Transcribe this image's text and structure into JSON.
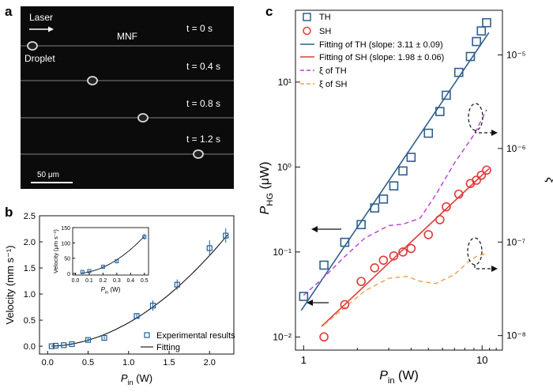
{
  "panels": {
    "a": {
      "letter": "a",
      "laser": "Laser",
      "fiber": "MNF",
      "droplet": "Droplet",
      "times": [
        "t = 0 s",
        "t = 0.4 s",
        "t = 0.8 s",
        "t = 1.2 s"
      ],
      "scale_bar": "50 μm"
    },
    "b": {
      "letter": "b"
    },
    "c": {
      "letter": "c"
    }
  },
  "chart_data": [
    {
      "panel": "b",
      "type": "scatter",
      "xlabel_main": "P",
      "xlabel_sub": "in",
      "xlabel_unit": " (W)",
      "ylabel": "Velocity (mm s⁻¹)",
      "xlim": [
        -0.1,
        2.3
      ],
      "ylim": [
        -0.15,
        2.5
      ],
      "xticks": [
        "0.0",
        "0.5",
        "1.0",
        "1.5",
        "2.0"
      ],
      "yticks": [
        "0.0",
        "0.5",
        "1.0",
        "1.5",
        "2.0",
        "2.5"
      ],
      "series": [
        {
          "name": "Experimental results",
          "x": [
            0.05,
            0.1,
            0.2,
            0.3,
            0.5,
            0.7,
            1.1,
            1.3,
            1.6,
            2.0,
            2.2
          ],
          "y": [
            0.0,
            0.01,
            0.02,
            0.04,
            0.12,
            0.16,
            0.58,
            0.78,
            1.18,
            1.88,
            2.12
          ],
          "err": [
            0.01,
            0.01,
            0.01,
            0.02,
            0.03,
            0.03,
            0.05,
            0.1,
            0.1,
            0.15,
            0.14
          ]
        },
        {
          "name": "Fitting"
        }
      ],
      "inset": {
        "xlabel_main": "P",
        "xlabel_sub": "in",
        "xlabel_unit": " (W)",
        "ylabel": "Velocity (μm s⁻¹)",
        "xticks": [
          "0.0",
          "0.1",
          "0.2",
          "0.3",
          "0.4",
          "0.5"
        ],
        "yticks": [
          "0",
          "50",
          "100",
          "150"
        ],
        "x": [
          0.05,
          0.1,
          0.2,
          0.3,
          0.5
        ],
        "y": [
          5,
          8,
          22,
          40,
          120
        ],
        "err": [
          2,
          2,
          3,
          5,
          10
        ]
      }
    },
    {
      "panel": "c",
      "type": "scatter",
      "xscale": "log",
      "yscale": "log",
      "xlabel_main": "P",
      "xlabel_sub": "in",
      "xlabel_unit": " (W)",
      "ylabel_main": "P",
      "ylabel_sub": "HG",
      "ylabel_unit": " (μW)",
      "y2label": "ξ",
      "xlim": [
        0.9,
        13
      ],
      "ylim": [
        0.007,
        70
      ],
      "y2lim": [
        7e-09,
        3e-05
      ],
      "xticks": [
        "1",
        "10"
      ],
      "yticks": [
        "10⁻²",
        "10⁻¹",
        "10⁰",
        "10¹"
      ],
      "y2ticks": [
        "10⁻⁸",
        "10⁻⁷",
        "10⁻⁶",
        "10⁻⁵"
      ],
      "series": [
        {
          "name": "TH",
          "x": [
            1.0,
            1.3,
            1.7,
            2.1,
            2.5,
            2.8,
            3.2,
            3.6,
            4.0,
            5.0,
            5.8,
            6.3,
            7.4,
            8.6,
            9.3,
            9.9,
            10.6
          ],
          "y": [
            0.03,
            0.07,
            0.13,
            0.21,
            0.33,
            0.42,
            0.6,
            0.9,
            1.3,
            2.5,
            4.5,
            7.0,
            13,
            20,
            30,
            40,
            50
          ]
        },
        {
          "name": "SH",
          "x": [
            1.3,
            1.7,
            2.1,
            2.5,
            2.8,
            3.2,
            3.6,
            4.0,
            5.0,
            5.8,
            6.3,
            7.4,
            8.6,
            9.3,
            9.9,
            10.6
          ],
          "y": [
            0.01,
            0.024,
            0.045,
            0.065,
            0.08,
            0.09,
            0.1,
            0.11,
            0.16,
            0.24,
            0.34,
            0.48,
            0.64,
            0.7,
            0.8,
            0.92
          ]
        },
        {
          "name": "Fitting of TH (slope: 3.11 ± 0.09)",
          "slope": 3.11
        },
        {
          "name": "Fitting of SH (slope: 1.98 ± 0.06)",
          "slope": 1.98
        },
        {
          "name": "ξ of TH"
        },
        {
          "name": "ξ of SH"
        }
      ],
      "colors": {
        "TH": "#2f5f8f",
        "SH": "#e03a3a",
        "xiTH": "#c03ad8",
        "xiSH": "#f0a050"
      }
    }
  ]
}
